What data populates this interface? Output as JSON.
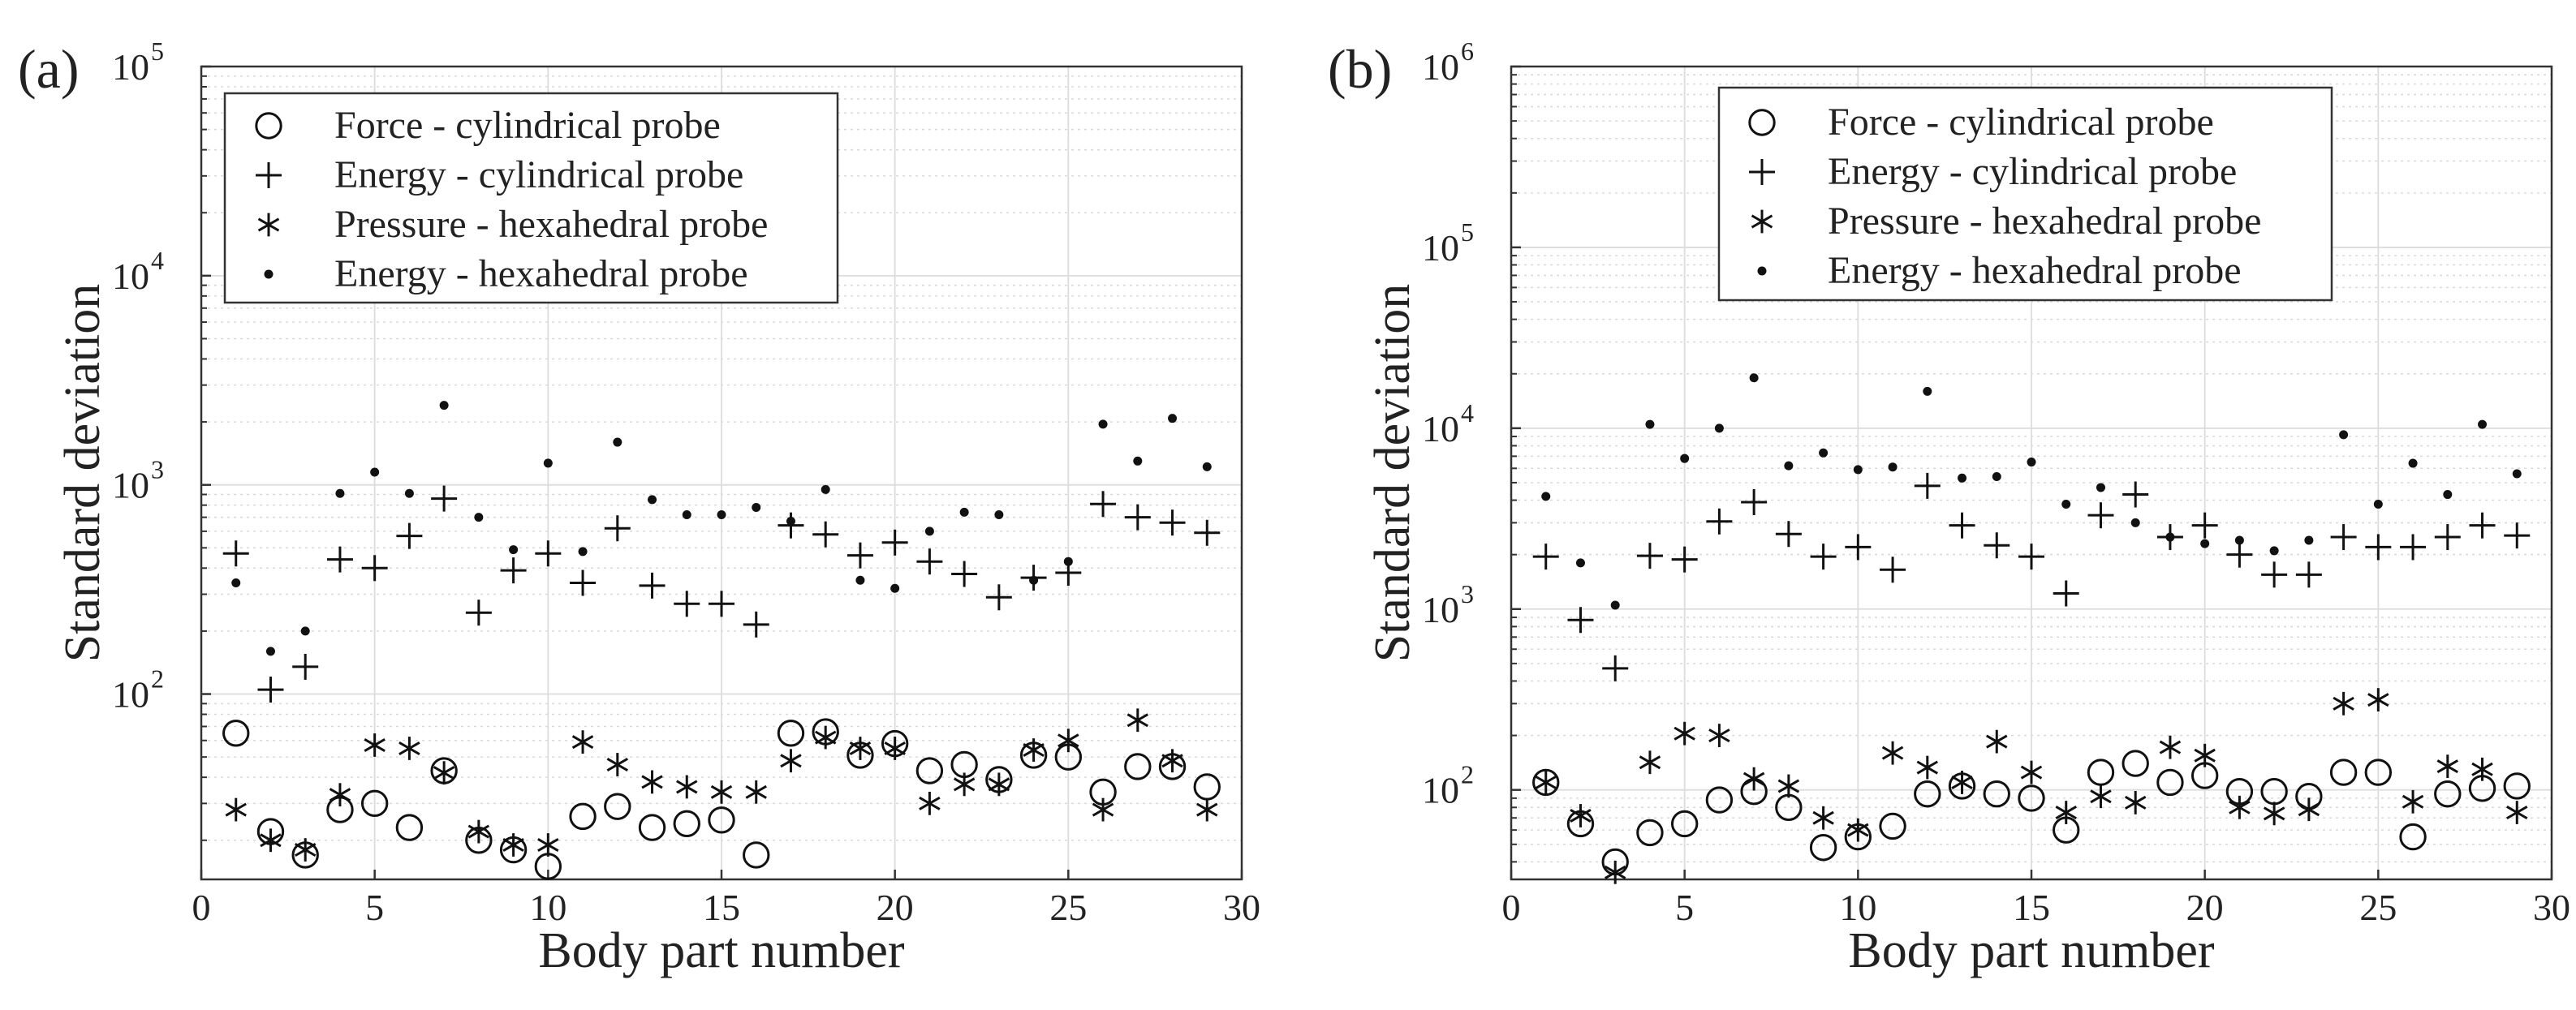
{
  "chart_data": [
    {
      "panel_label": "(a)",
      "type": "scatter",
      "xlabel": "Body part number",
      "ylabel": "Standard deviation",
      "yscale": "log",
      "xlim": [
        0,
        30
      ],
      "ylim": [
        13,
        100000
      ],
      "xticks": [
        0,
        5,
        10,
        15,
        20,
        25,
        30
      ],
      "yticks": [
        {
          "value": 100,
          "base": "10",
          "exp": "2"
        },
        {
          "value": 1000,
          "base": "10",
          "exp": "3"
        },
        {
          "value": 10000,
          "base": "10",
          "exp": "4"
        },
        {
          "value": 100000,
          "base": "10",
          "exp": "5"
        }
      ],
      "grid": true,
      "legend": "top-left",
      "series": [
        {
          "name": "Force - cylindrical probe",
          "marker": "circle",
          "x": [
            1,
            2,
            3,
            4,
            5,
            6,
            7,
            8,
            9,
            10,
            11,
            12,
            13,
            14,
            15,
            16,
            17,
            18,
            19,
            20,
            21,
            22,
            23,
            24,
            25,
            26,
            27,
            28,
            29
          ],
          "values": [
            65,
            22,
            17,
            28,
            30,
            23,
            43,
            20,
            18,
            15,
            26,
            29,
            23,
            24,
            25,
            17,
            65,
            66,
            51,
            58,
            43,
            46,
            39,
            51,
            50,
            34,
            45,
            45,
            36
          ]
        },
        {
          "name": "Energy - cylindrical probe",
          "marker": "plus",
          "x": [
            1,
            2,
            3,
            4,
            5,
            6,
            7,
            8,
            9,
            10,
            11,
            12,
            13,
            14,
            15,
            16,
            17,
            18,
            19,
            20,
            21,
            22,
            23,
            24,
            25,
            26,
            27,
            28,
            29
          ],
          "values": [
            470,
            105,
            135,
            440,
            400,
            570,
            860,
            245,
            390,
            470,
            340,
            620,
            330,
            270,
            270,
            215,
            640,
            580,
            460,
            530,
            430,
            375,
            290,
            360,
            380,
            810,
            700,
            660,
            590
          ]
        },
        {
          "name": "Pressure - hexahedral probe",
          "marker": "asterisk",
          "x": [
            1,
            2,
            3,
            4,
            5,
            6,
            7,
            8,
            9,
            10,
            11,
            12,
            13,
            14,
            15,
            16,
            17,
            18,
            19,
            20,
            21,
            22,
            23,
            24,
            25,
            26,
            27,
            28,
            29
          ],
          "values": [
            28,
            20,
            18,
            33,
            57,
            55,
            42,
            22,
            19,
            19,
            59,
            46,
            38,
            36,
            34,
            34,
            48,
            62,
            55,
            55,
            30,
            37,
            37,
            54,
            60,
            28,
            75,
            48,
            28
          ]
        },
        {
          "name": "Energy - hexahedral probe",
          "marker": "dot",
          "x": [
            1,
            2,
            3,
            4,
            5,
            6,
            7,
            8,
            9,
            10,
            11,
            12,
            13,
            14,
            15,
            16,
            17,
            18,
            19,
            20,
            21,
            22,
            23,
            24,
            25,
            26,
            27,
            28,
            29
          ],
          "values": [
            340,
            160,
            200,
            910,
            1150,
            910,
            2400,
            700,
            490,
            1270,
            480,
            1600,
            850,
            720,
            720,
            780,
            670,
            950,
            350,
            320,
            600,
            740,
            720,
            350,
            430,
            1950,
            1300,
            2080,
            1220
          ]
        }
      ]
    },
    {
      "panel_label": "(b)",
      "type": "scatter",
      "xlabel": "Body part number",
      "ylabel": "Standard deviation",
      "yscale": "log",
      "xlim": [
        0,
        30
      ],
      "ylim": [
        32,
        1000000
      ],
      "xticks": [
        0,
        5,
        10,
        15,
        20,
        25,
        30
      ],
      "yticks": [
        {
          "value": 100,
          "base": "10",
          "exp": "2"
        },
        {
          "value": 1000,
          "base": "10",
          "exp": "3"
        },
        {
          "value": 10000,
          "base": "10",
          "exp": "4"
        },
        {
          "value": 100000,
          "base": "10",
          "exp": "5"
        },
        {
          "value": 1000000,
          "base": "10",
          "exp": "6"
        }
      ],
      "grid": true,
      "legend": "top-center",
      "series": [
        {
          "name": "Force - cylindrical probe",
          "marker": "circle",
          "x": [
            1,
            2,
            3,
            4,
            5,
            6,
            7,
            8,
            9,
            10,
            11,
            12,
            13,
            14,
            15,
            16,
            17,
            18,
            19,
            20,
            21,
            22,
            23,
            24,
            25,
            26,
            27,
            28,
            29
          ],
          "values": [
            110,
            65,
            40,
            58,
            65,
            88,
            98,
            80,
            48,
            55,
            63,
            95,
            105,
            95,
            90,
            60,
            125,
            140,
            110,
            120,
            98,
            98,
            92,
            125,
            125,
            55,
            95,
            102,
            105
          ]
        },
        {
          "name": "Energy - cylindrical probe",
          "marker": "plus",
          "x": [
            1,
            2,
            3,
            4,
            5,
            6,
            7,
            8,
            9,
            10,
            11,
            12,
            13,
            14,
            15,
            16,
            17,
            18,
            19,
            20,
            21,
            22,
            23,
            24,
            25,
            26,
            27,
            28,
            29
          ],
          "values": [
            1950,
            870,
            470,
            1970,
            1880,
            3050,
            3900,
            2600,
            1950,
            2200,
            1650,
            4800,
            2900,
            2250,
            1950,
            1220,
            3300,
            4300,
            2500,
            2900,
            2000,
            1550,
            1550,
            2500,
            2200,
            2200,
            2500,
            2900,
            2550
          ]
        },
        {
          "name": "Pressure - hexahedral probe",
          "marker": "asterisk",
          "x": [
            1,
            2,
            3,
            4,
            5,
            6,
            7,
            8,
            9,
            10,
            11,
            12,
            13,
            14,
            15,
            16,
            17,
            18,
            19,
            20,
            21,
            22,
            23,
            24,
            25,
            26,
            27,
            28,
            29
          ],
          "values": [
            110,
            72,
            35,
            142,
            205,
            200,
            115,
            105,
            70,
            60,
            160,
            133,
            110,
            185,
            125,
            75,
            92,
            85,
            172,
            155,
            80,
            74,
            78,
            300,
            315,
            86,
            135,
            130,
            75
          ]
        },
        {
          "name": "Energy - hexahedral probe",
          "marker": "dot",
          "x": [
            1,
            2,
            3,
            4,
            5,
            6,
            7,
            8,
            9,
            10,
            11,
            12,
            13,
            14,
            15,
            16,
            17,
            18,
            19,
            20,
            21,
            22,
            23,
            24,
            25,
            26,
            27,
            28,
            29
          ],
          "values": [
            4200,
            1800,
            1050,
            10500,
            6800,
            10000,
            19000,
            6200,
            7300,
            5900,
            6100,
            16000,
            5300,
            5400,
            6500,
            3800,
            4700,
            3000,
            2500,
            2300,
            2400,
            2100,
            2400,
            9200,
            3800,
            6400,
            4300,
            10500,
            5600
          ]
        }
      ]
    }
  ]
}
